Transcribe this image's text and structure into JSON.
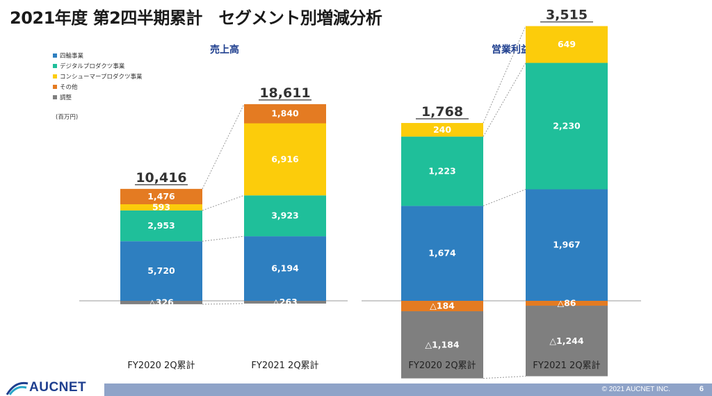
{
  "title": "2021年度 第2四半期累計　セグメント別増減分析",
  "legend": [
    {
      "label": "四輪事業",
      "color": "#2e7fc0"
    },
    {
      "label": "デジタルプロダクツ事業",
      "color": "#1fbf9a"
    },
    {
      "label": "コンシューマープロダクツ事業",
      "color": "#fccc0b"
    },
    {
      "label": "その他",
      "color": "#e47b22"
    },
    {
      "label": "調整",
      "color": "#7f7f7f"
    }
  ],
  "unit": "(百万円)",
  "footer": {
    "copyright": "© 2021 AUCNET INC.",
    "page": "6",
    "logo": "AUCNET"
  },
  "chart_data": [
    {
      "type": "bar",
      "stacked": true,
      "title": "売上高",
      "categories": [
        "FY2020 2Q累計",
        "FY2021 2Q累計"
      ],
      "totals": [
        "10,416",
        "18,611"
      ],
      "total_values": [
        10416,
        18611
      ],
      "series": [
        {
          "name": "四輪事業",
          "color": "#2e7fc0",
          "values": [
            5720,
            6194
          ],
          "labels": [
            "5,720",
            "6,194"
          ]
        },
        {
          "name": "デジタルプロダクツ事業",
          "color": "#1fbf9a",
          "values": [
            2953,
            3923
          ],
          "labels": [
            "2,953",
            "3,923"
          ]
        },
        {
          "name": "コンシューマープロダクツ事業",
          "color": "#fccc0b",
          "values": [
            593,
            6916
          ],
          "labels": [
            "593",
            "6,916"
          ]
        },
        {
          "name": "その他",
          "color": "#e47b22",
          "values": [
            1476,
            1840
          ],
          "labels": [
            "1,476",
            "1,840"
          ]
        },
        {
          "name": "調整",
          "color": "#7f7f7f",
          "values": [
            -326,
            -263
          ],
          "labels": [
            "△326",
            "△263"
          ]
        }
      ]
    },
    {
      "type": "bar",
      "stacked": true,
      "title": "営業利益",
      "categories": [
        "FY2020 2Q累計",
        "FY2021 2Q累計"
      ],
      "totals": [
        "1,768",
        "3,515"
      ],
      "total_values": [
        1768,
        3515
      ],
      "series": [
        {
          "name": "四輪事業",
          "color": "#2e7fc0",
          "values": [
            1674,
            1967
          ],
          "labels": [
            "1,674",
            "1,967"
          ]
        },
        {
          "name": "デジタルプロダクツ事業",
          "color": "#1fbf9a",
          "values": [
            1223,
            2230
          ],
          "labels": [
            "1,223",
            "2,230"
          ]
        },
        {
          "name": "コンシューマープロダクツ事業",
          "color": "#fccc0b",
          "values": [
            240,
            649
          ],
          "labels": [
            "240",
            "649"
          ]
        },
        {
          "name": "その他",
          "color": "#e47b22",
          "values": [
            -184,
            -86
          ],
          "labels": [
            "△184",
            "△86"
          ]
        },
        {
          "name": "調整",
          "color": "#7f7f7f",
          "values": [
            -1184,
            -1244
          ],
          "labels": [
            "△1,184",
            "△1,244"
          ]
        }
      ]
    }
  ]
}
